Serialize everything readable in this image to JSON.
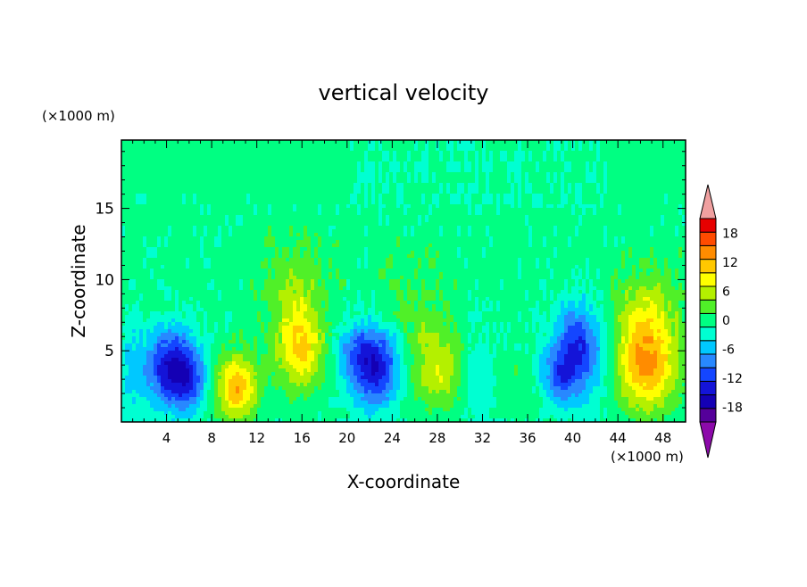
{
  "chart_data": {
    "type": "heatmap",
    "title": "vertical velocity",
    "xlabel": "X-coordinate",
    "ylabel": "Z-coordinate",
    "x_unit": "(×1000 m)",
    "y_unit": "(×1000 m)",
    "xlim": [
      0,
      50
    ],
    "ylim": [
      0,
      19.8
    ],
    "x_ticks": [
      4,
      8,
      12,
      16,
      20,
      24,
      28,
      32,
      36,
      40,
      44,
      48
    ],
    "y_ticks": [
      5,
      10,
      15
    ],
    "grid": false,
    "colorbar": {
      "levels": [
        -21,
        -18,
        -15,
        -12,
        -9,
        -6,
        -3,
        0,
        3,
        6,
        9,
        12,
        15,
        18,
        21
      ],
      "colors": [
        "#55009a",
        "#1400b4",
        "#1414d8",
        "#1446ff",
        "#2888ff",
        "#00c8ff",
        "#00ffd2",
        "#00ff82",
        "#50f028",
        "#b4f000",
        "#ffff00",
        "#ffc800",
        "#ff8c00",
        "#ff4b00",
        "#e60000"
      ],
      "under_color": "#8c0aaa",
      "over_color": "#f0a0a0",
      "tick_labels": [
        "18",
        "12",
        "6",
        "0",
        "-6",
        "-12",
        "-18"
      ],
      "tick_values": [
        18,
        12,
        6,
        0,
        -6,
        -12,
        -18
      ]
    },
    "background_value": 1.2,
    "features": [
      {
        "x": 4.5,
        "z": 3.8,
        "sx": 1.6,
        "sz": 1.9,
        "amp": -16
      },
      {
        "x": 6.2,
        "z": 2.8,
        "sx": 1.1,
        "sz": 1.4,
        "amp": -6
      },
      {
        "x": 10.2,
        "z": 2.4,
        "sx": 1.3,
        "sz": 1.6,
        "amp": 14
      },
      {
        "x": 15.8,
        "z": 5.0,
        "sx": 1.4,
        "sz": 1.9,
        "amp": 11
      },
      {
        "x": 15.5,
        "z": 9.0,
        "sx": 1.8,
        "sz": 2.5,
        "amp": 5
      },
      {
        "x": 22.5,
        "z": 3.9,
        "sx": 1.6,
        "sz": 1.9,
        "amp": -16
      },
      {
        "x": 20.5,
        "z": 5.2,
        "sx": 1.0,
        "sz": 1.2,
        "amp": -5
      },
      {
        "x": 27.5,
        "z": 4.3,
        "sx": 2.0,
        "sz": 2.4,
        "amp": 6
      },
      {
        "x": 28.5,
        "z": 3.0,
        "sx": 1.0,
        "sz": 1.2,
        "amp": 3
      },
      {
        "x": 25.8,
        "z": 8.8,
        "sx": 1.8,
        "sz": 2.2,
        "amp": 2
      },
      {
        "x": 31.8,
        "z": 3.5,
        "sx": 1.1,
        "sz": 2.4,
        "amp": -3.5
      },
      {
        "x": 34.8,
        "z": 3.0,
        "sx": 1.7,
        "sz": 1.4,
        "amp": 2
      },
      {
        "x": 37.5,
        "z": 4.0,
        "sx": 1.0,
        "sz": 1.5,
        "amp": -3.5
      },
      {
        "x": 40.3,
        "z": 5.2,
        "sx": 1.3,
        "sz": 2.2,
        "amp": -13
      },
      {
        "x": 39.0,
        "z": 3.0,
        "sx": 0.9,
        "sz": 1.2,
        "amp": -7
      },
      {
        "x": 42.6,
        "z": 4.5,
        "sx": 1.3,
        "sz": 2.5,
        "amp": -3
      },
      {
        "x": 46.5,
        "z": 4.2,
        "sx": 2.0,
        "sz": 2.4,
        "amp": 15
      },
      {
        "x": 46.5,
        "z": 8.5,
        "sx": 2.0,
        "sz": 2.0,
        "amp": 4
      },
      {
        "x": 1.0,
        "z": 4.0,
        "sx": 0.8,
        "sz": 2.5,
        "amp": -4
      }
    ]
  }
}
